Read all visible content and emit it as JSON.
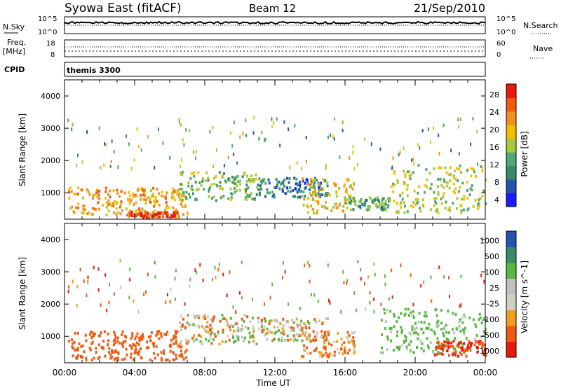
{
  "header": {
    "title": "Syowa East (fitACF)",
    "beam": "Beam 12",
    "date": "21/Sep/2010"
  },
  "aux": {
    "nsky_label": "N.Sky",
    "nsky_ticks": [
      "10^5",
      "10^0"
    ],
    "nsearch_label": "N.Search",
    "nsearch_ticks": [
      "10^5",
      "10^0"
    ],
    "freq_label_1": "Freq.",
    "freq_label_2": "[MHz]",
    "freq_ticks": [
      "18",
      "8"
    ],
    "nave_label": "Nave",
    "nave_ticks": [
      "60",
      "0"
    ],
    "cpid_label": "CPID",
    "cpid_value": "themis 3300"
  },
  "axes": {
    "ylabel": "Slant Range [km]",
    "xlabel": "Time UT",
    "y_ticks": [
      "4000",
      "3000",
      "2000",
      "1000"
    ],
    "x_ticks": [
      "00:00",
      "04:00",
      "08:00",
      "12:00",
      "16:00",
      "20:00",
      "00:00"
    ]
  },
  "colors": {
    "power_scale": [
      "#1a1aff",
      "#2653b0",
      "#3a8a6a",
      "#4fa870",
      "#a8c83a",
      "#f0c000",
      "#f09020",
      "#f05a10",
      "#e81a10"
    ],
    "velocity_scale": [
      "#e81a10",
      "#f05a10",
      "#f0a020",
      "#d0d0c0",
      "#c0c0c0",
      "#58b840",
      "#3a8a6a",
      "#2653b0"
    ]
  },
  "chart_data": [
    {
      "type": "heatmap",
      "name": "Power panel",
      "xlabel": "Time UT",
      "ylabel": "Slant Range [km]",
      "xlim_hours": [
        0,
        24
      ],
      "ylim_km": [
        180,
        4500
      ],
      "colorbar_label": "Power [dB]",
      "colorbar_ticks": [
        "28",
        "24",
        "20",
        "16",
        "12",
        "8",
        "4"
      ],
      "colorbar_range_db": [
        0,
        32
      ],
      "regions": [
        {
          "t0": 0.2,
          "t1": 7.0,
          "r0": 350,
          "r1": 1200,
          "value": 22
        },
        {
          "t0": 6.5,
          "t1": 11.0,
          "r0": 800,
          "r1": 1700,
          "value": 14
        },
        {
          "t0": 11.0,
          "t1": 15.0,
          "r0": 900,
          "r1": 1500,
          "value": 8
        },
        {
          "t0": 13.5,
          "t1": 16.5,
          "r0": 400,
          "r1": 1500,
          "value": 20
        },
        {
          "t0": 16.0,
          "t1": 18.5,
          "r0": 500,
          "r1": 900,
          "value": 12
        },
        {
          "t0": 18.5,
          "t1": 24.0,
          "r0": 400,
          "r1": 1900,
          "value": 16
        },
        {
          "t0": 3.5,
          "t1": 6.5,
          "r0": 250,
          "r1": 450,
          "value": 28
        }
      ]
    },
    {
      "type": "heatmap",
      "name": "Velocity panel",
      "xlabel": "Time UT",
      "ylabel": "Slant Range [km]",
      "xlim_hours": [
        0,
        24
      ],
      "ylim_km": [
        180,
        4500
      ],
      "colorbar_label": "Velocity [m s^-1]",
      "colorbar_ticks": [
        "1000",
        "500",
        "100",
        "25",
        "-25",
        "-100",
        "-500",
        "-1000"
      ],
      "regions": [
        {
          "t0": 0.2,
          "t1": 7.0,
          "r0": 300,
          "r1": 1200,
          "value": -300
        },
        {
          "t0": 6.5,
          "t1": 11.0,
          "r0": 800,
          "r1": 1700,
          "value": 0
        },
        {
          "t0": 11.0,
          "t1": 15.0,
          "r0": 900,
          "r1": 1600,
          "value": 0
        },
        {
          "t0": 13.5,
          "t1": 16.5,
          "r0": 400,
          "r1": 1200,
          "value": -150
        },
        {
          "t0": 18.0,
          "t1": 24.0,
          "r0": 500,
          "r1": 1900,
          "value": 200
        },
        {
          "t0": 21.0,
          "t1": 24.0,
          "r0": 400,
          "r1": 900,
          "value": -500
        }
      ]
    }
  ]
}
